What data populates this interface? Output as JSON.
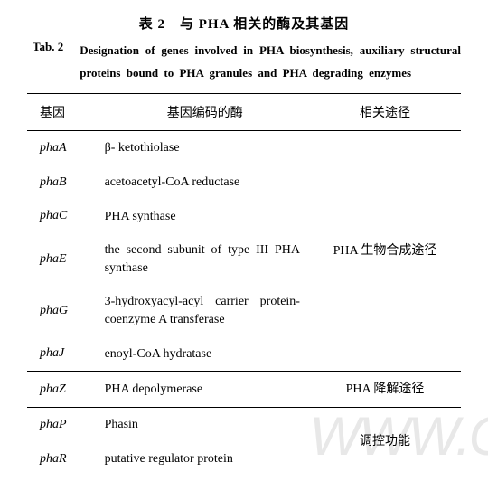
{
  "title_cn": "表 2　与 PHA 相关的酶及其基因",
  "title_en_label": "Tab. 2",
  "title_en": "Designation of genes involved in PHA biosynthesis, auxiliary structural proteins bound to PHA granules and PHA degrading enzymes",
  "headers": {
    "gene": "基因",
    "enzyme": "基因编码的酶",
    "pathway": "相关途径"
  },
  "rows": [
    {
      "gene": "phaA",
      "enzyme": "β- ketothiolase"
    },
    {
      "gene": "phaB",
      "enzyme": "acetoacetyl-CoA reductase"
    },
    {
      "gene": "phaC",
      "enzyme": "PHA synthase"
    },
    {
      "gene": "phaE",
      "enzyme": "the second subunit of type III PHA synthase",
      "justify": true
    },
    {
      "gene": "phaG",
      "enzyme": "3-hydroxyacyl-acyl carrier protein-coenzyme A transferase",
      "justify": true
    },
    {
      "gene": "phaJ",
      "enzyme": "enoyl-CoA hydratase"
    },
    {
      "gene": "phaZ",
      "enzyme": "PHA depolymerase"
    },
    {
      "gene": "phaP",
      "enzyme": "Phasin"
    },
    {
      "gene": "phaR",
      "enzyme": "putative regulator protein"
    }
  ],
  "pathways": {
    "biosynthesis": "PHA 生物合成途径",
    "degradation": "PHA 降解途径",
    "regulation": "调控功能"
  },
  "watermark": "WWW.C",
  "colors": {
    "background": "#ffffff",
    "text": "#000000",
    "border": "#000000",
    "watermark": "#e8e8e8"
  }
}
